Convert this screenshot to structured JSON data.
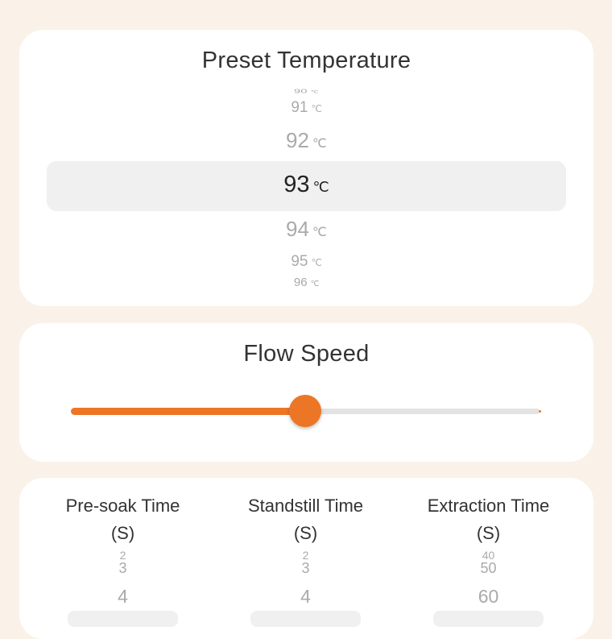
{
  "preset_temperature": {
    "title": "Preset Temperature",
    "unit": "℃",
    "values": [
      "90",
      "91",
      "92",
      "93",
      "94",
      "95",
      "96"
    ],
    "selected": "93"
  },
  "flow_speed": {
    "title": "Flow Speed",
    "value_fraction": 0.5,
    "accent": "#ec7626"
  },
  "times": [
    {
      "title": "Pre-soak Time",
      "unit": "(S)",
      "values": [
        "2",
        "3",
        "4"
      ]
    },
    {
      "title": "Standstill Time",
      "unit": "(S)",
      "values": [
        "2",
        "3",
        "4"
      ]
    },
    {
      "title": "Extraction Time",
      "unit": "(S)",
      "values": [
        "40",
        "50",
        "60"
      ]
    }
  ]
}
